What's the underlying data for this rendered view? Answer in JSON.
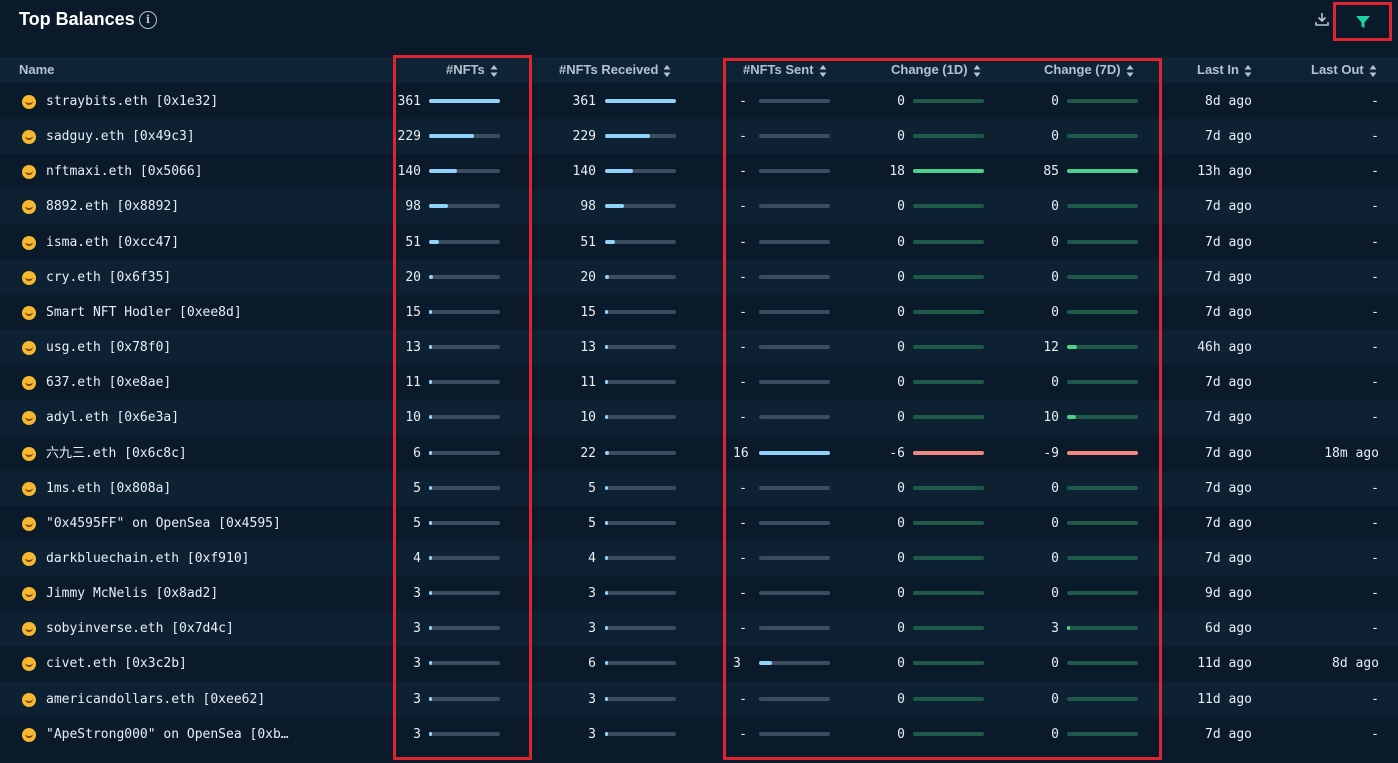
{
  "header": {
    "title": "Top Balances",
    "info_icon": "info-icon",
    "download_icon": "download-icon",
    "filter_icon": "filter-icon",
    "accent_color": "#1dd1a1",
    "highlight_color": "#e0242f"
  },
  "columns": {
    "name": "Name",
    "nfts": "#NFTs",
    "received": "#NFTs Received",
    "sent": "#NFTs Sent",
    "change1d": "Change (1D)",
    "change7d": "Change (7D)",
    "last_in": "Last In",
    "last_out": "Last Out"
  },
  "rows": [
    {
      "name": "straybits.eth [0x1e32]",
      "nfts": "361",
      "nfts_frac": 1.0,
      "received": "361",
      "received_frac": 1.0,
      "sent": "-",
      "sent_frac": 0,
      "c1d": "0",
      "c1d_frac": 0,
      "c1d_sign": "pos",
      "c7d": "0",
      "c7d_frac": 0,
      "c7d_sign": "pos",
      "last_in": "8d ago",
      "last_out": "-"
    },
    {
      "name": "sadguy.eth [0x49c3]",
      "nfts": "229",
      "nfts_frac": 0.63,
      "received": "229",
      "received_frac": 0.63,
      "sent": "-",
      "sent_frac": 0,
      "c1d": "0",
      "c1d_frac": 0,
      "c1d_sign": "pos",
      "c7d": "0",
      "c7d_frac": 0,
      "c7d_sign": "pos",
      "last_in": "7d ago",
      "last_out": "-"
    },
    {
      "name": "nftmaxi.eth [0x5066]",
      "nfts": "140",
      "nfts_frac": 0.39,
      "received": "140",
      "received_frac": 0.39,
      "sent": "-",
      "sent_frac": 0,
      "c1d": "18",
      "c1d_frac": 1.0,
      "c1d_sign": "pos",
      "c7d": "85",
      "c7d_frac": 1.0,
      "c7d_sign": "pos",
      "last_in": "13h ago",
      "last_out": "-"
    },
    {
      "name": "8892.eth [0x8892]",
      "nfts": "98",
      "nfts_frac": 0.27,
      "received": "98",
      "received_frac": 0.27,
      "sent": "-",
      "sent_frac": 0,
      "c1d": "0",
      "c1d_frac": 0,
      "c1d_sign": "pos",
      "c7d": "0",
      "c7d_frac": 0,
      "c7d_sign": "pos",
      "last_in": "7d ago",
      "last_out": "-"
    },
    {
      "name": "isma.eth [0xcc47]",
      "nfts": "51",
      "nfts_frac": 0.14,
      "received": "51",
      "received_frac": 0.14,
      "sent": "-",
      "sent_frac": 0,
      "c1d": "0",
      "c1d_frac": 0,
      "c1d_sign": "pos",
      "c7d": "0",
      "c7d_frac": 0,
      "c7d_sign": "pos",
      "last_in": "7d ago",
      "last_out": "-"
    },
    {
      "name": "cry.eth [0x6f35]",
      "nfts": "20",
      "nfts_frac": 0.055,
      "received": "20",
      "received_frac": 0.055,
      "sent": "-",
      "sent_frac": 0,
      "c1d": "0",
      "c1d_frac": 0,
      "c1d_sign": "pos",
      "c7d": "0",
      "c7d_frac": 0,
      "c7d_sign": "pos",
      "last_in": "7d ago",
      "last_out": "-"
    },
    {
      "name": "Smart NFT Hodler [0xee8d]",
      "nfts": "15",
      "nfts_frac": 0.042,
      "received": "15",
      "received_frac": 0.042,
      "sent": "-",
      "sent_frac": 0,
      "c1d": "0",
      "c1d_frac": 0,
      "c1d_sign": "pos",
      "c7d": "0",
      "c7d_frac": 0,
      "c7d_sign": "pos",
      "last_in": "7d ago",
      "last_out": "-"
    },
    {
      "name": "usg.eth [0x78f0]",
      "nfts": "13",
      "nfts_frac": 0.036,
      "received": "13",
      "received_frac": 0.036,
      "sent": "-",
      "sent_frac": 0,
      "c1d": "0",
      "c1d_frac": 0,
      "c1d_sign": "pos",
      "c7d": "12",
      "c7d_frac": 0.14,
      "c7d_sign": "pos",
      "last_in": "46h ago",
      "last_out": "-"
    },
    {
      "name": "637.eth [0xe8ae]",
      "nfts": "11",
      "nfts_frac": 0.03,
      "received": "11",
      "received_frac": 0.03,
      "sent": "-",
      "sent_frac": 0,
      "c1d": "0",
      "c1d_frac": 0,
      "c1d_sign": "pos",
      "c7d": "0",
      "c7d_frac": 0,
      "c7d_sign": "pos",
      "last_in": "7d ago",
      "last_out": "-"
    },
    {
      "name": "adyl.eth [0x6e3a]",
      "nfts": "10",
      "nfts_frac": 0.028,
      "received": "10",
      "received_frac": 0.028,
      "sent": "-",
      "sent_frac": 0,
      "c1d": "0",
      "c1d_frac": 0,
      "c1d_sign": "pos",
      "c7d": "10",
      "c7d_frac": 0.12,
      "c7d_sign": "pos",
      "last_in": "7d ago",
      "last_out": "-"
    },
    {
      "name": "六九三.eth [0x6c8c]",
      "nfts": "6",
      "nfts_frac": 0.017,
      "received": "22",
      "received_frac": 0.06,
      "sent": "16",
      "sent_frac": 1.0,
      "c1d": "-6",
      "c1d_frac": 1.0,
      "c1d_sign": "neg",
      "c7d": "-9",
      "c7d_frac": 1.0,
      "c7d_sign": "neg",
      "last_in": "7d ago",
      "last_out": "18m ago"
    },
    {
      "name": "1ms.eth [0x808a]",
      "nfts": "5",
      "nfts_frac": 0.014,
      "received": "5",
      "received_frac": 0.014,
      "sent": "-",
      "sent_frac": 0,
      "c1d": "0",
      "c1d_frac": 0,
      "c1d_sign": "pos",
      "c7d": "0",
      "c7d_frac": 0,
      "c7d_sign": "pos",
      "last_in": "7d ago",
      "last_out": "-"
    },
    {
      "name": "\"0x4595FF\" on OpenSea [0x4595]",
      "nfts": "5",
      "nfts_frac": 0.014,
      "received": "5",
      "received_frac": 0.014,
      "sent": "-",
      "sent_frac": 0,
      "c1d": "0",
      "c1d_frac": 0,
      "c1d_sign": "pos",
      "c7d": "0",
      "c7d_frac": 0,
      "c7d_sign": "pos",
      "last_in": "7d ago",
      "last_out": "-"
    },
    {
      "name": "darkbluechain.eth [0xf910]",
      "nfts": "4",
      "nfts_frac": 0.011,
      "received": "4",
      "received_frac": 0.011,
      "sent": "-",
      "sent_frac": 0,
      "c1d": "0",
      "c1d_frac": 0,
      "c1d_sign": "pos",
      "c7d": "0",
      "c7d_frac": 0,
      "c7d_sign": "pos",
      "last_in": "7d ago",
      "last_out": "-"
    },
    {
      "name": "Jimmy McNelis [0x8ad2]",
      "nfts": "3",
      "nfts_frac": 0.008,
      "received": "3",
      "received_frac": 0.008,
      "sent": "-",
      "sent_frac": 0,
      "c1d": "0",
      "c1d_frac": 0,
      "c1d_sign": "pos",
      "c7d": "0",
      "c7d_frac": 0,
      "c7d_sign": "pos",
      "last_in": "9d ago",
      "last_out": "-"
    },
    {
      "name": "sobyinverse.eth [0x7d4c]",
      "nfts": "3",
      "nfts_frac": 0.008,
      "received": "3",
      "received_frac": 0.008,
      "sent": "-",
      "sent_frac": 0,
      "c1d": "0",
      "c1d_frac": 0,
      "c1d_sign": "pos",
      "c7d": "3",
      "c7d_frac": 0.035,
      "c7d_sign": "pos",
      "last_in": "6d ago",
      "last_out": "-"
    },
    {
      "name": "civet.eth [0x3c2b]",
      "nfts": "3",
      "nfts_frac": 0.008,
      "received": "6",
      "received_frac": 0.017,
      "sent": "3",
      "sent_frac": 0.19,
      "c1d": "0",
      "c1d_frac": 0,
      "c1d_sign": "pos",
      "c7d": "0",
      "c7d_frac": 0,
      "c7d_sign": "pos",
      "last_in": "11d ago",
      "last_out": "8d ago"
    },
    {
      "name": "americandollars.eth [0xee62]",
      "nfts": "3",
      "nfts_frac": 0.008,
      "received": "3",
      "received_frac": 0.008,
      "sent": "-",
      "sent_frac": 0,
      "c1d": "0",
      "c1d_frac": 0,
      "c1d_sign": "pos",
      "c7d": "0",
      "c7d_frac": 0,
      "c7d_sign": "pos",
      "last_in": "11d ago",
      "last_out": "-"
    },
    {
      "name": "\"ApeStrong000\" on OpenSea [0xb…",
      "nfts": "3",
      "nfts_frac": 0.008,
      "received": "3",
      "received_frac": 0.008,
      "sent": "-",
      "sent_frac": 0,
      "c1d": "0",
      "c1d_frac": 0,
      "c1d_sign": "pos",
      "c7d": "0",
      "c7d_frac": 0,
      "c7d_sign": "pos",
      "last_in": "7d ago",
      "last_out": "-"
    }
  ]
}
